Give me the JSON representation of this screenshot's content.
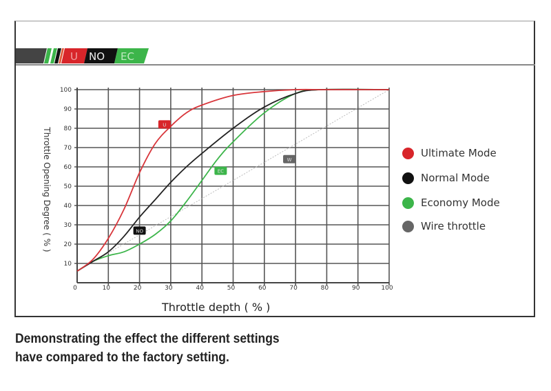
{
  "banner": {
    "labels": [
      "U",
      "NO",
      "EC"
    ],
    "colors": [
      "#d8252a",
      "#111111",
      "#3cb54a"
    ]
  },
  "chart_data": {
    "type": "line",
    "xlabel": "Throttle depth ( % )",
    "ylabel": "Throttle Opening Degree ( % )",
    "xlim": [
      0,
      100
    ],
    "ylim": [
      0,
      100
    ],
    "x_ticks": [
      0,
      10,
      20,
      30,
      40,
      50,
      60,
      70,
      80,
      90,
      100
    ],
    "y_ticks": [
      10,
      20,
      30,
      40,
      50,
      60,
      70,
      80,
      90,
      100
    ],
    "grid": true,
    "legend_position": "right",
    "series": [
      {
        "name": "Ultimate Mode",
        "color": "#d8353a",
        "tag": "U",
        "tag_at": [
          28,
          82
        ],
        "x": [
          0,
          5,
          10,
          15,
          20,
          25,
          30,
          35,
          40,
          50,
          60,
          70,
          80,
          100
        ],
        "y": [
          6,
          12,
          23,
          38,
          57,
          72,
          81,
          88,
          92,
          97,
          99,
          100,
          100,
          100
        ]
      },
      {
        "name": "Normal Mode",
        "color": "#222222",
        "tag": "NO",
        "tag_at": [
          20,
          27
        ],
        "x": [
          0,
          5,
          10,
          15,
          20,
          25,
          30,
          35,
          40,
          50,
          60,
          70,
          78,
          100
        ],
        "y": [
          6,
          11,
          16,
          24,
          34,
          43,
          52,
          60,
          67,
          80,
          91,
          98,
          100,
          100
        ]
      },
      {
        "name": "Economy Mode",
        "color": "#3cb54a",
        "tag": "EC",
        "tag_at": [
          46,
          58
        ],
        "x": [
          0,
          5,
          10,
          15,
          20,
          25,
          30,
          35,
          40,
          45,
          50,
          60,
          70,
          78,
          100
        ],
        "y": [
          6,
          11,
          14,
          16,
          20,
          25,
          32,
          42,
          53,
          64,
          73,
          88,
          98,
          100,
          100
        ]
      },
      {
        "name": "Wire throttle",
        "color": "#bbbbbb",
        "tag": "W",
        "tag_at": [
          68,
          64
        ],
        "dotted": true,
        "x": [
          0,
          100
        ],
        "y": [
          6,
          100
        ]
      }
    ]
  },
  "legend_dot_colors": [
    "#d8252a",
    "#111111",
    "#3cb54a",
    "#666666"
  ],
  "caption": {
    "line1": "Demonstrating the effect the different settings",
    "line2": "have compared to the factory setting."
  }
}
